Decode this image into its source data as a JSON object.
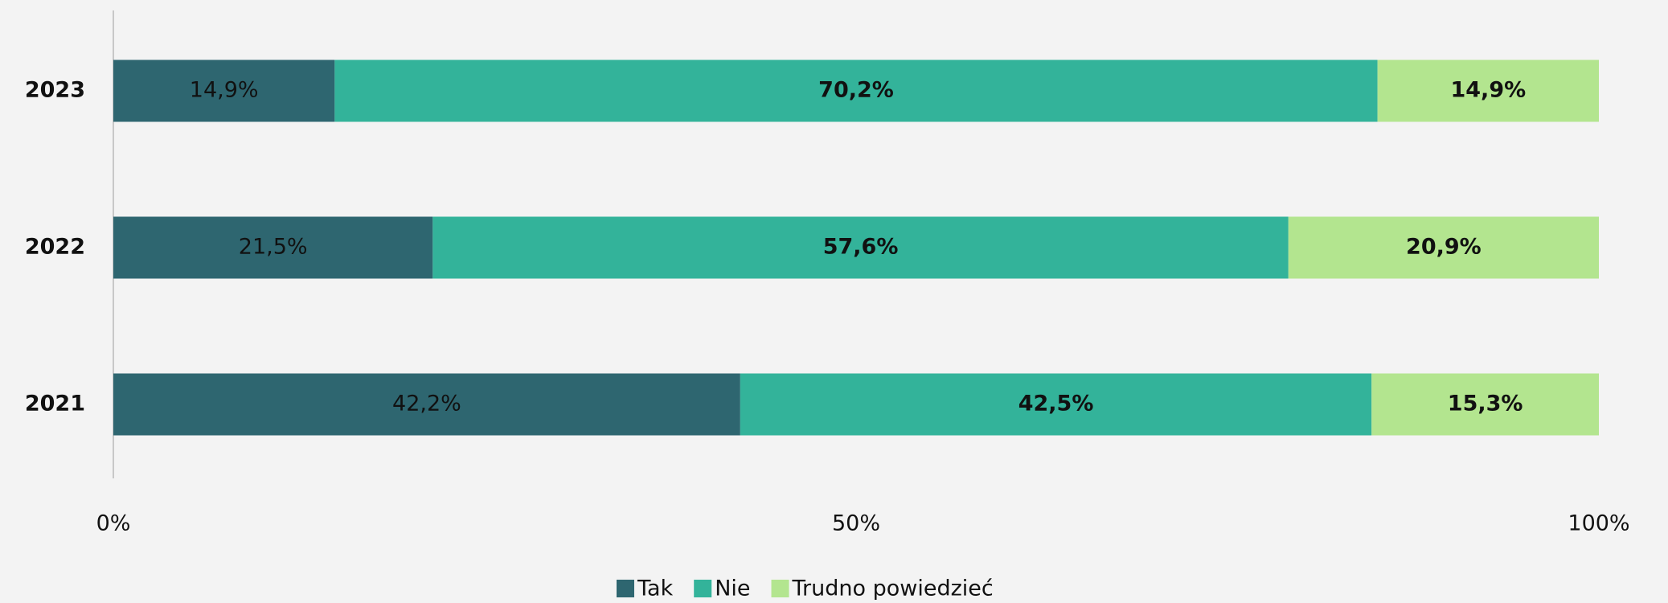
{
  "chart_data": {
    "type": "stacked_barh",
    "categories": [
      "2023",
      "2022",
      "2021"
    ],
    "series": [
      {
        "name": "Tak",
        "color": "#2e6670",
        "values": [
          14.9,
          21.5,
          42.2
        ],
        "value_labels": [
          "14,9%",
          "21,5%",
          "42,2%"
        ]
      },
      {
        "name": "Nie",
        "color": "#33b39a",
        "values": [
          70.2,
          57.6,
          42.5
        ],
        "value_labels": [
          "70,2%",
          "57,6%",
          "42,5%"
        ]
      },
      {
        "name": "Trudno powiedzieć",
        "color": "#b3e58f",
        "values": [
          14.9,
          20.9,
          15.3
        ],
        "value_labels": [
          "14,9%",
          "20,9%",
          "15,3%"
        ]
      }
    ],
    "xlim": [
      0,
      100
    ],
    "xticks": [
      {
        "value": 0,
        "label": "0%"
      },
      {
        "value": 50,
        "label": "50%"
      },
      {
        "value": 100,
        "label": "100%"
      }
    ],
    "legend": "bottom"
  }
}
